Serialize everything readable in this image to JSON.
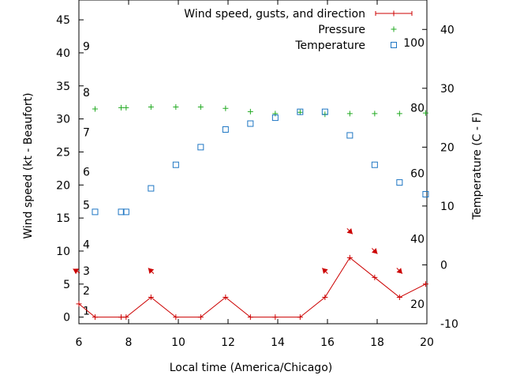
{
  "chart_data": {
    "type": "line",
    "xlabel": "Local time (America/Chicago)",
    "ylabel_left": "Wind speed (kt - Beaufort)",
    "ylabel_right": "Temperature (C - F)",
    "xlim": [
      6,
      20
    ],
    "ylim_left": [
      -1,
      48
    ],
    "ylim_right_celsius": [
      -10,
      45
    ],
    "x_ticks": [
      6,
      8,
      10,
      12,
      14,
      16,
      18,
      20
    ],
    "x_tick_labels": [
      "6",
      "8",
      "10",
      "12",
      "14",
      "16",
      "18",
      "20"
    ],
    "y_left_ticks": [
      0,
      5,
      10,
      15,
      20,
      25,
      30,
      35,
      40,
      45
    ],
    "y_left_tick_labels": [
      "0",
      "5",
      "10",
      "15",
      "20",
      "25",
      "30",
      "35",
      "40",
      "45"
    ],
    "y_right_ticks_celsius": [
      -10,
      0,
      10,
      20,
      30,
      40
    ],
    "y_right_tick_labels_celsius": [
      "-10",
      "0",
      "10",
      "20",
      "30",
      "40"
    ],
    "fahrenheit_labels": [
      {
        "value": 20,
        "label": "20"
      },
      {
        "value": 40,
        "label": "40"
      },
      {
        "value": 60,
        "label": "60"
      },
      {
        "value": 80,
        "label": "80"
      },
      {
        "value": 100,
        "label": "100"
      }
    ],
    "beaufort_labels": [
      {
        "kt": 1,
        "label": "1"
      },
      {
        "kt": 4,
        "label": "2"
      },
      {
        "kt": 7,
        "label": "3"
      },
      {
        "kt": 11,
        "label": "4"
      },
      {
        "kt": 17,
        "label": "5"
      },
      {
        "kt": 22,
        "label": "6"
      },
      {
        "kt": 28,
        "label": "7"
      },
      {
        "kt": 34,
        "label": "8"
      },
      {
        "kt": 41,
        "label": "9"
      }
    ],
    "legend": [
      {
        "label": "Wind speed, gusts, and direction",
        "color": "#cc0000",
        "marker": "plus-line"
      },
      {
        "label": "Pressure",
        "color": "#22aa22",
        "marker": "plus"
      },
      {
        "label": "Temperature",
        "color": "#1f77c4",
        "marker": "square"
      }
    ],
    "series": [
      {
        "name": "Wind speed, gusts, and direction",
        "color": "#cc0000",
        "x": [
          6.0,
          6.65,
          7.7,
          7.9,
          8.9,
          9.9,
          10.9,
          11.9,
          12.9,
          13.9,
          14.9,
          15.9,
          16.9,
          17.9,
          18.9,
          19.95
        ],
        "y": [
          2,
          0,
          0,
          0,
          3,
          0,
          0,
          3,
          0,
          0,
          0,
          3,
          9,
          6,
          3,
          5
        ]
      },
      {
        "name": "Pressure",
        "color": "#22aa22",
        "x": [
          6.65,
          7.7,
          7.9,
          8.9,
          9.9,
          10.9,
          11.9,
          12.9,
          13.9,
          14.9,
          15.9,
          16.9,
          17.9,
          18.9,
          19.95
        ],
        "y": [
          31.5,
          31.7,
          31.7,
          31.8,
          31.8,
          31.8,
          31.6,
          31.1,
          30.8,
          31.0,
          30.7,
          30.8,
          30.8,
          30.8,
          30.9
        ]
      },
      {
        "name": "Temperature",
        "color": "#1f77c4",
        "x": [
          6.65,
          7.7,
          7.9,
          8.9,
          9.9,
          10.9,
          11.9,
          12.9,
          13.9,
          14.9,
          15.9,
          16.9,
          17.9,
          18.9,
          19.95
        ],
        "y_celsius": [
          9,
          9,
          9,
          13,
          17,
          20,
          23,
          24,
          25,
          26,
          26,
          22,
          17,
          14,
          12
        ]
      }
    ],
    "wind_arrows": [
      {
        "x": 5.9,
        "y": 7,
        "direction_deg": 300
      },
      {
        "x": 8.9,
        "y": 7,
        "direction_deg": 315
      },
      {
        "x": 15.9,
        "y": 7,
        "direction_deg": 315
      },
      {
        "x": 16.9,
        "y": 13,
        "direction_deg": 135
      },
      {
        "x": 17.9,
        "y": 10,
        "direction_deg": 135
      },
      {
        "x": 18.9,
        "y": 7,
        "direction_deg": 135
      }
    ]
  }
}
